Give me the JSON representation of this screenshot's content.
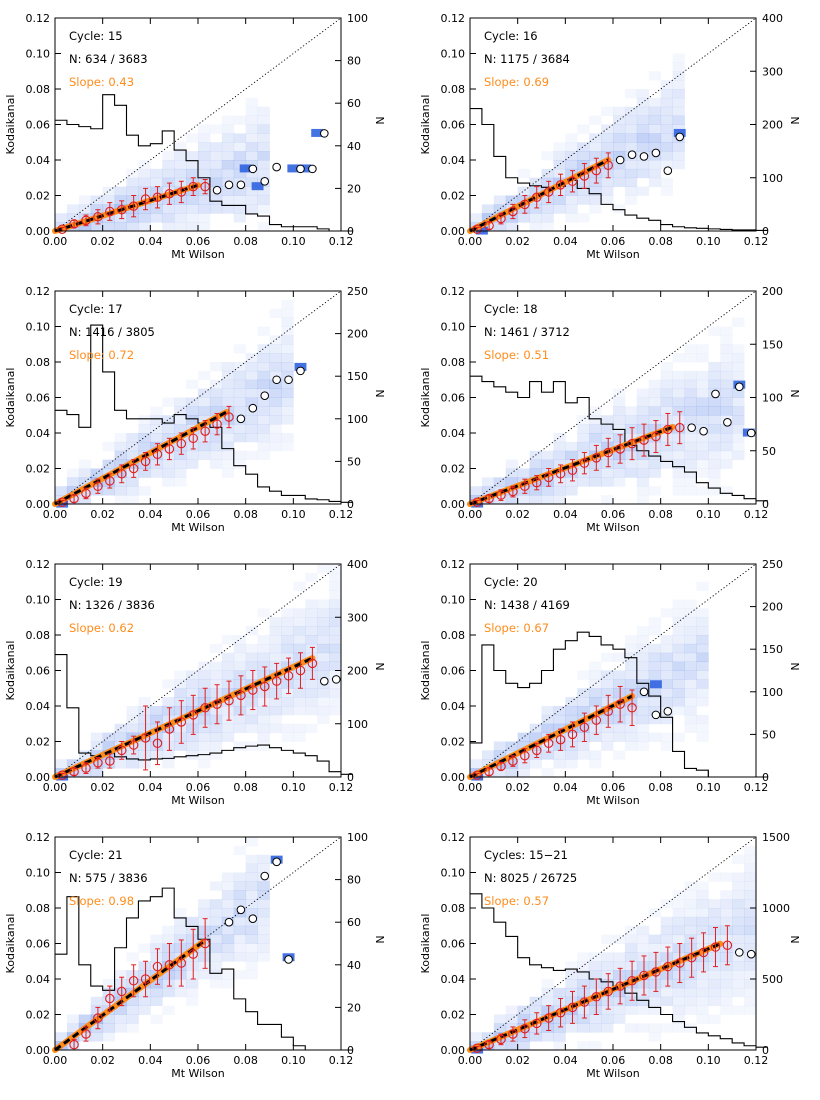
{
  "figure": {
    "xlabel": "Mt Wilson",
    "ylabel": "Kodaikanal",
    "y2label": "N",
    "x_ticks": [
      "0.00",
      "0.02",
      "0.04",
      "0.06",
      "0.08",
      "0.10",
      "0.12"
    ],
    "y_ticks": [
      "0.00",
      "0.02",
      "0.04",
      "0.06",
      "0.08",
      "0.10",
      "0.12"
    ],
    "colors": {
      "fit": "#ff8c1a",
      "points": "#e02020",
      "heat": "#2f63e0",
      "frame": "#000000",
      "hist": "#000000"
    }
  },
  "chart_data": [
    {
      "type": "scatter",
      "title": "Cycle: 15",
      "cycle_label": "Cycle: 15",
      "n_label": "N: 634 / 3683",
      "slope_label": "Slope: 0.43",
      "xlim": [
        0,
        0.12
      ],
      "ylim": [
        0,
        0.12
      ],
      "y2lim": [
        0,
        100
      ],
      "y2_ticks": [
        "0",
        "20",
        "40",
        "60",
        "80",
        "100"
      ],
      "slope": 0.43,
      "fit_xmax": 0.06,
      "binned_x": [
        0.003,
        0.008,
        0.013,
        0.018,
        0.023,
        0.028,
        0.033,
        0.038,
        0.043,
        0.048,
        0.053,
        0.058,
        0.063
      ],
      "binned_y": [
        0.001,
        0.004,
        0.006,
        0.008,
        0.011,
        0.012,
        0.014,
        0.018,
        0.019,
        0.021,
        0.022,
        0.025,
        0.025
      ],
      "binned_err": [
        0.001,
        0.002,
        0.003,
        0.004,
        0.005,
        0.005,
        0.006,
        0.006,
        0.006,
        0.006,
        0.006,
        0.005,
        0.004
      ],
      "open_x": [
        0.068,
        0.073,
        0.078,
        0.083,
        0.088,
        0.093,
        0.103,
        0.108,
        0.113
      ],
      "open_y": [
        0.023,
        0.026,
        0.026,
        0.035,
        0.028,
        0.036,
        0.035,
        0.035,
        0.055
      ],
      "hist_counts": [
        52,
        50,
        49,
        48,
        64,
        59,
        45,
        40,
        41,
        47,
        38,
        33,
        25,
        14,
        12,
        12,
        8,
        7,
        3,
        2,
        2,
        2,
        1,
        0,
        0
      ],
      "strong_cells": [
        [
          0.11,
          0.055
        ],
        [
          0.08,
          0.035
        ],
        [
          0.1,
          0.035
        ],
        [
          0.105,
          0.035
        ],
        [
          0.085,
          0.025
        ]
      ]
    },
    {
      "type": "scatter",
      "title": "Cycle: 16",
      "cycle_label": "Cycle: 16",
      "n_label": "N: 1175 / 3684",
      "slope_label": "Slope: 0.69",
      "xlim": [
        0,
        0.12
      ],
      "ylim": [
        0,
        0.12
      ],
      "y2lim": [
        0,
        400
      ],
      "y2_ticks": [
        "0",
        "100",
        "200",
        "300",
        "400"
      ],
      "slope": 0.69,
      "fit_xmax": 0.058,
      "binned_x": [
        0.003,
        0.008,
        0.013,
        0.018,
        0.023,
        0.028,
        0.033,
        0.038,
        0.043,
        0.048,
        0.053,
        0.058
      ],
      "binned_y": [
        0.001,
        0.003,
        0.007,
        0.011,
        0.015,
        0.019,
        0.022,
        0.026,
        0.028,
        0.031,
        0.034,
        0.037
      ],
      "binned_err": [
        0.001,
        0.002,
        0.003,
        0.004,
        0.005,
        0.006,
        0.006,
        0.006,
        0.006,
        0.007,
        0.007,
        0.007
      ],
      "open_x": [
        0.063,
        0.068,
        0.073,
        0.078,
        0.083,
        0.088
      ],
      "open_y": [
        0.04,
        0.043,
        0.042,
        0.044,
        0.034,
        0.053
      ],
      "hist_counts": [
        230,
        200,
        140,
        100,
        90,
        85,
        82,
        84,
        95,
        80,
        70,
        50,
        40,
        30,
        24,
        20,
        12,
        8,
        6,
        5,
        4,
        3,
        2,
        2,
        1
      ],
      "strong_cells": [
        [
          0.088,
          0.055
        ],
        [
          0.005,
          0.0
        ]
      ]
    },
    {
      "type": "scatter",
      "title": "Cycle: 17",
      "cycle_label": "Cycle: 17",
      "n_label": "N: 1416 / 3805",
      "slope_label": "Slope: 0.72",
      "xlim": [
        0,
        0.12
      ],
      "ylim": [
        0,
        0.12
      ],
      "y2lim": [
        0,
        250
      ],
      "y2_ticks": [
        "0",
        "50",
        "100",
        "150",
        "200",
        "250"
      ],
      "slope": 0.72,
      "fit_xmax": 0.072,
      "binned_x": [
        0.003,
        0.008,
        0.013,
        0.018,
        0.023,
        0.028,
        0.033,
        0.038,
        0.043,
        0.048,
        0.053,
        0.058,
        0.063,
        0.068,
        0.073
      ],
      "binned_y": [
        0.001,
        0.003,
        0.006,
        0.01,
        0.013,
        0.017,
        0.02,
        0.024,
        0.028,
        0.031,
        0.034,
        0.037,
        0.041,
        0.045,
        0.049
      ],
      "binned_err": [
        0.001,
        0.002,
        0.003,
        0.004,
        0.004,
        0.005,
        0.005,
        0.005,
        0.006,
        0.006,
        0.006,
        0.006,
        0.006,
        0.006,
        0.006
      ],
      "open_x": [
        0.078,
        0.083,
        0.088,
        0.093,
        0.098,
        0.103
      ],
      "open_y": [
        0.048,
        0.054,
        0.061,
        0.07,
        0.07,
        0.075
      ],
      "hist_counts": [
        110,
        105,
        90,
        210,
        155,
        110,
        100,
        100,
        100,
        95,
        105,
        100,
        95,
        90,
        65,
        45,
        35,
        20,
        15,
        10,
        10,
        6,
        5,
        3,
        2
      ],
      "strong_cells": [
        [
          0.103,
          0.077
        ],
        [
          0.003,
          0.0
        ]
      ]
    },
    {
      "type": "scatter",
      "title": "Cycle: 18",
      "cycle_label": "Cycle: 18",
      "n_label": "N: 1461 / 3712",
      "slope_label": "Slope: 0.51",
      "xlim": [
        0,
        0.12
      ],
      "ylim": [
        0,
        0.12
      ],
      "y2lim": [
        0,
        200
      ],
      "y2_ticks": [
        "0",
        "50",
        "100",
        "150",
        "200"
      ],
      "slope": 0.51,
      "fit_xmax": 0.085,
      "binned_x": [
        0.003,
        0.008,
        0.013,
        0.018,
        0.023,
        0.028,
        0.033,
        0.038,
        0.043,
        0.048,
        0.053,
        0.058,
        0.063,
        0.068,
        0.073,
        0.078,
        0.083,
        0.088
      ],
      "binned_y": [
        0.001,
        0.003,
        0.005,
        0.007,
        0.01,
        0.012,
        0.015,
        0.017,
        0.019,
        0.023,
        0.026,
        0.029,
        0.031,
        0.034,
        0.036,
        0.038,
        0.042,
        0.043
      ],
      "binned_err": [
        0.001,
        0.002,
        0.003,
        0.003,
        0.004,
        0.004,
        0.005,
        0.005,
        0.006,
        0.006,
        0.007,
        0.008,
        0.008,
        0.009,
        0.009,
        0.009,
        0.009,
        0.009
      ],
      "open_x": [
        0.093,
        0.098,
        0.103,
        0.108,
        0.113,
        0.118
      ],
      "open_y": [
        0.043,
        0.041,
        0.062,
        0.046,
        0.066,
        0.04
      ],
      "hist_counts": [
        120,
        115,
        110,
        105,
        100,
        115,
        105,
        115,
        95,
        100,
        80,
        75,
        70,
        55,
        50,
        45,
        40,
        35,
        30,
        20,
        15,
        10,
        8,
        5,
        3
      ],
      "strong_cells": [
        [
          0.113,
          0.067
        ],
        [
          0.117,
          0.04
        ],
        [
          0.003,
          0.0
        ]
      ]
    },
    {
      "type": "scatter",
      "title": "Cycle: 19",
      "cycle_label": "Cycle: 19",
      "n_label": "N: 1326 / 3836",
      "slope_label": "Slope: 0.62",
      "xlim": [
        0,
        0.12
      ],
      "ylim": [
        0,
        0.12
      ],
      "y2lim": [
        0,
        400
      ],
      "y2_ticks": [
        "0",
        "100",
        "200",
        "300",
        "400"
      ],
      "slope": 0.62,
      "fit_xmax": 0.108,
      "binned_x": [
        0.003,
        0.008,
        0.013,
        0.018,
        0.023,
        0.028,
        0.033,
        0.038,
        0.043,
        0.048,
        0.053,
        0.058,
        0.063,
        0.068,
        0.073,
        0.078,
        0.083,
        0.088,
        0.093,
        0.098,
        0.103,
        0.108
      ],
      "binned_y": [
        0.001,
        0.003,
        0.005,
        0.008,
        0.009,
        0.015,
        0.018,
        0.022,
        0.019,
        0.027,
        0.031,
        0.035,
        0.039,
        0.041,
        0.043,
        0.046,
        0.049,
        0.051,
        0.054,
        0.057,
        0.06,
        0.064
      ],
      "binned_err": [
        0.001,
        0.002,
        0.003,
        0.003,
        0.004,
        0.005,
        0.005,
        0.018,
        0.012,
        0.012,
        0.012,
        0.011,
        0.011,
        0.011,
        0.011,
        0.011,
        0.011,
        0.011,
        0.01,
        0.01,
        0.01,
        0.009
      ],
      "open_x": [
        0.113,
        0.118
      ],
      "open_y": [
        0.054,
        0.055
      ],
      "hist_counts": [
        230,
        130,
        45,
        40,
        45,
        38,
        34,
        32,
        34,
        35,
        38,
        40,
        42,
        45,
        50,
        55,
        58,
        60,
        55,
        50,
        45,
        40,
        30,
        10,
        5
      ],
      "strong_cells": [
        [
          0.003,
          0.0
        ]
      ]
    },
    {
      "type": "scatter",
      "title": "Cycle: 20",
      "cycle_label": "Cycle: 20",
      "n_label": "N: 1438 / 4169",
      "slope_label": "Slope: 0.67",
      "xlim": [
        0,
        0.12
      ],
      "ylim": [
        0,
        0.12
      ],
      "y2lim": [
        0,
        250
      ],
      "y2_ticks": [
        "0",
        "50",
        "100",
        "150",
        "200",
        "250"
      ],
      "slope": 0.67,
      "fit_xmax": 0.068,
      "binned_x": [
        0.003,
        0.008,
        0.013,
        0.018,
        0.023,
        0.028,
        0.033,
        0.038,
        0.043,
        0.048,
        0.053,
        0.058,
        0.063,
        0.068
      ],
      "binned_y": [
        0.001,
        0.003,
        0.006,
        0.009,
        0.012,
        0.015,
        0.019,
        0.021,
        0.024,
        0.028,
        0.032,
        0.037,
        0.041,
        0.039
      ],
      "binned_err": [
        0.001,
        0.002,
        0.002,
        0.003,
        0.004,
        0.004,
        0.005,
        0.006,
        0.007,
        0.008,
        0.008,
        0.009,
        0.01,
        0.01
      ],
      "open_x": [
        0.073,
        0.078,
        0.083
      ],
      "open_y": [
        0.048,
        0.035,
        0.037
      ],
      "hist_counts": [
        40,
        155,
        125,
        110,
        105,
        110,
        125,
        150,
        160,
        170,
        165,
        155,
        150,
        140,
        110,
        95,
        70,
        30,
        10,
        8,
        0,
        0,
        0,
        0,
        0
      ],
      "strong_cells": [
        [
          0.078,
          0.052
        ],
        [
          0.003,
          0.0
        ]
      ]
    },
    {
      "type": "scatter",
      "title": "Cycle: 21",
      "cycle_label": "Cycle: 21",
      "n_label": "N: 575 / 3836",
      "slope_label": "Slope: 0.98",
      "xlim": [
        0,
        0.12
      ],
      "ylim": [
        0,
        0.12
      ],
      "y2lim": [
        0,
        100
      ],
      "y2_ticks": [
        "0",
        "20",
        "40",
        "60",
        "80",
        "100"
      ],
      "slope": 0.98,
      "fit_xmax": 0.062,
      "binned_x": [
        0.008,
        0.013,
        0.018,
        0.023,
        0.028,
        0.033,
        0.038,
        0.043,
        0.048,
        0.053,
        0.058,
        0.063
      ],
      "binned_y": [
        0.003,
        0.009,
        0.018,
        0.029,
        0.033,
        0.039,
        0.04,
        0.047,
        0.048,
        0.049,
        0.054,
        0.06
      ],
      "binned_err": [
        0.003,
        0.004,
        0.006,
        0.007,
        0.008,
        0.009,
        0.01,
        0.01,
        0.012,
        0.013,
        0.014,
        0.014
      ],
      "open_x": [
        0.073,
        0.078,
        0.083,
        0.088,
        0.093,
        0.098
      ],
      "open_y": [
        0.072,
        0.079,
        0.074,
        0.098,
        0.106,
        0.051
      ],
      "hist_counts": [
        45,
        72,
        40,
        30,
        28,
        48,
        62,
        70,
        72,
        76,
        62,
        58,
        52,
        36,
        38,
        24,
        18,
        12,
        12,
        6,
        2,
        0,
        0,
        0,
        0
      ],
      "strong_cells": [
        [
          0.093,
          0.107
        ],
        [
          0.098,
          0.052
        ]
      ]
    },
    {
      "type": "scatter",
      "title": "Cycles: 15-21",
      "cycle_label": "Cycles: 15−21",
      "n_label": "N: 8025 / 26725",
      "slope_label": "Slope: 0.57",
      "xlim": [
        0,
        0.12
      ],
      "ylim": [
        0,
        0.12
      ],
      "y2lim": [
        0,
        1500
      ],
      "y2_ticks": [
        "0",
        "500",
        "1000",
        "1500"
      ],
      "slope": 0.57,
      "fit_xmax": 0.105,
      "binned_x": [
        0.003,
        0.008,
        0.013,
        0.018,
        0.023,
        0.028,
        0.033,
        0.038,
        0.043,
        0.048,
        0.053,
        0.058,
        0.063,
        0.068,
        0.073,
        0.078,
        0.083,
        0.088,
        0.093,
        0.098,
        0.103,
        0.108
      ],
      "binned_y": [
        0.001,
        0.003,
        0.006,
        0.009,
        0.012,
        0.015,
        0.018,
        0.021,
        0.024,
        0.027,
        0.03,
        0.033,
        0.036,
        0.039,
        0.042,
        0.044,
        0.047,
        0.049,
        0.052,
        0.055,
        0.058,
        0.059
      ],
      "binned_err": [
        0.001,
        0.002,
        0.003,
        0.004,
        0.005,
        0.006,
        0.007,
        0.008,
        0.009,
        0.009,
        0.01,
        0.01,
        0.01,
        0.011,
        0.011,
        0.011,
        0.011,
        0.011,
        0.011,
        0.011,
        0.011,
        0.011
      ],
      "open_x": [
        0.113,
        0.118
      ],
      "open_y": [
        0.055,
        0.054
      ],
      "hist_counts": [
        1100,
        1000,
        900,
        800,
        650,
        600,
        580,
        560,
        570,
        550,
        500,
        480,
        450,
        400,
        350,
        300,
        250,
        200,
        160,
        120,
        100,
        80,
        50,
        30,
        20
      ],
      "strong_cells": [
        [
          0.003,
          0.0
        ]
      ]
    }
  ]
}
